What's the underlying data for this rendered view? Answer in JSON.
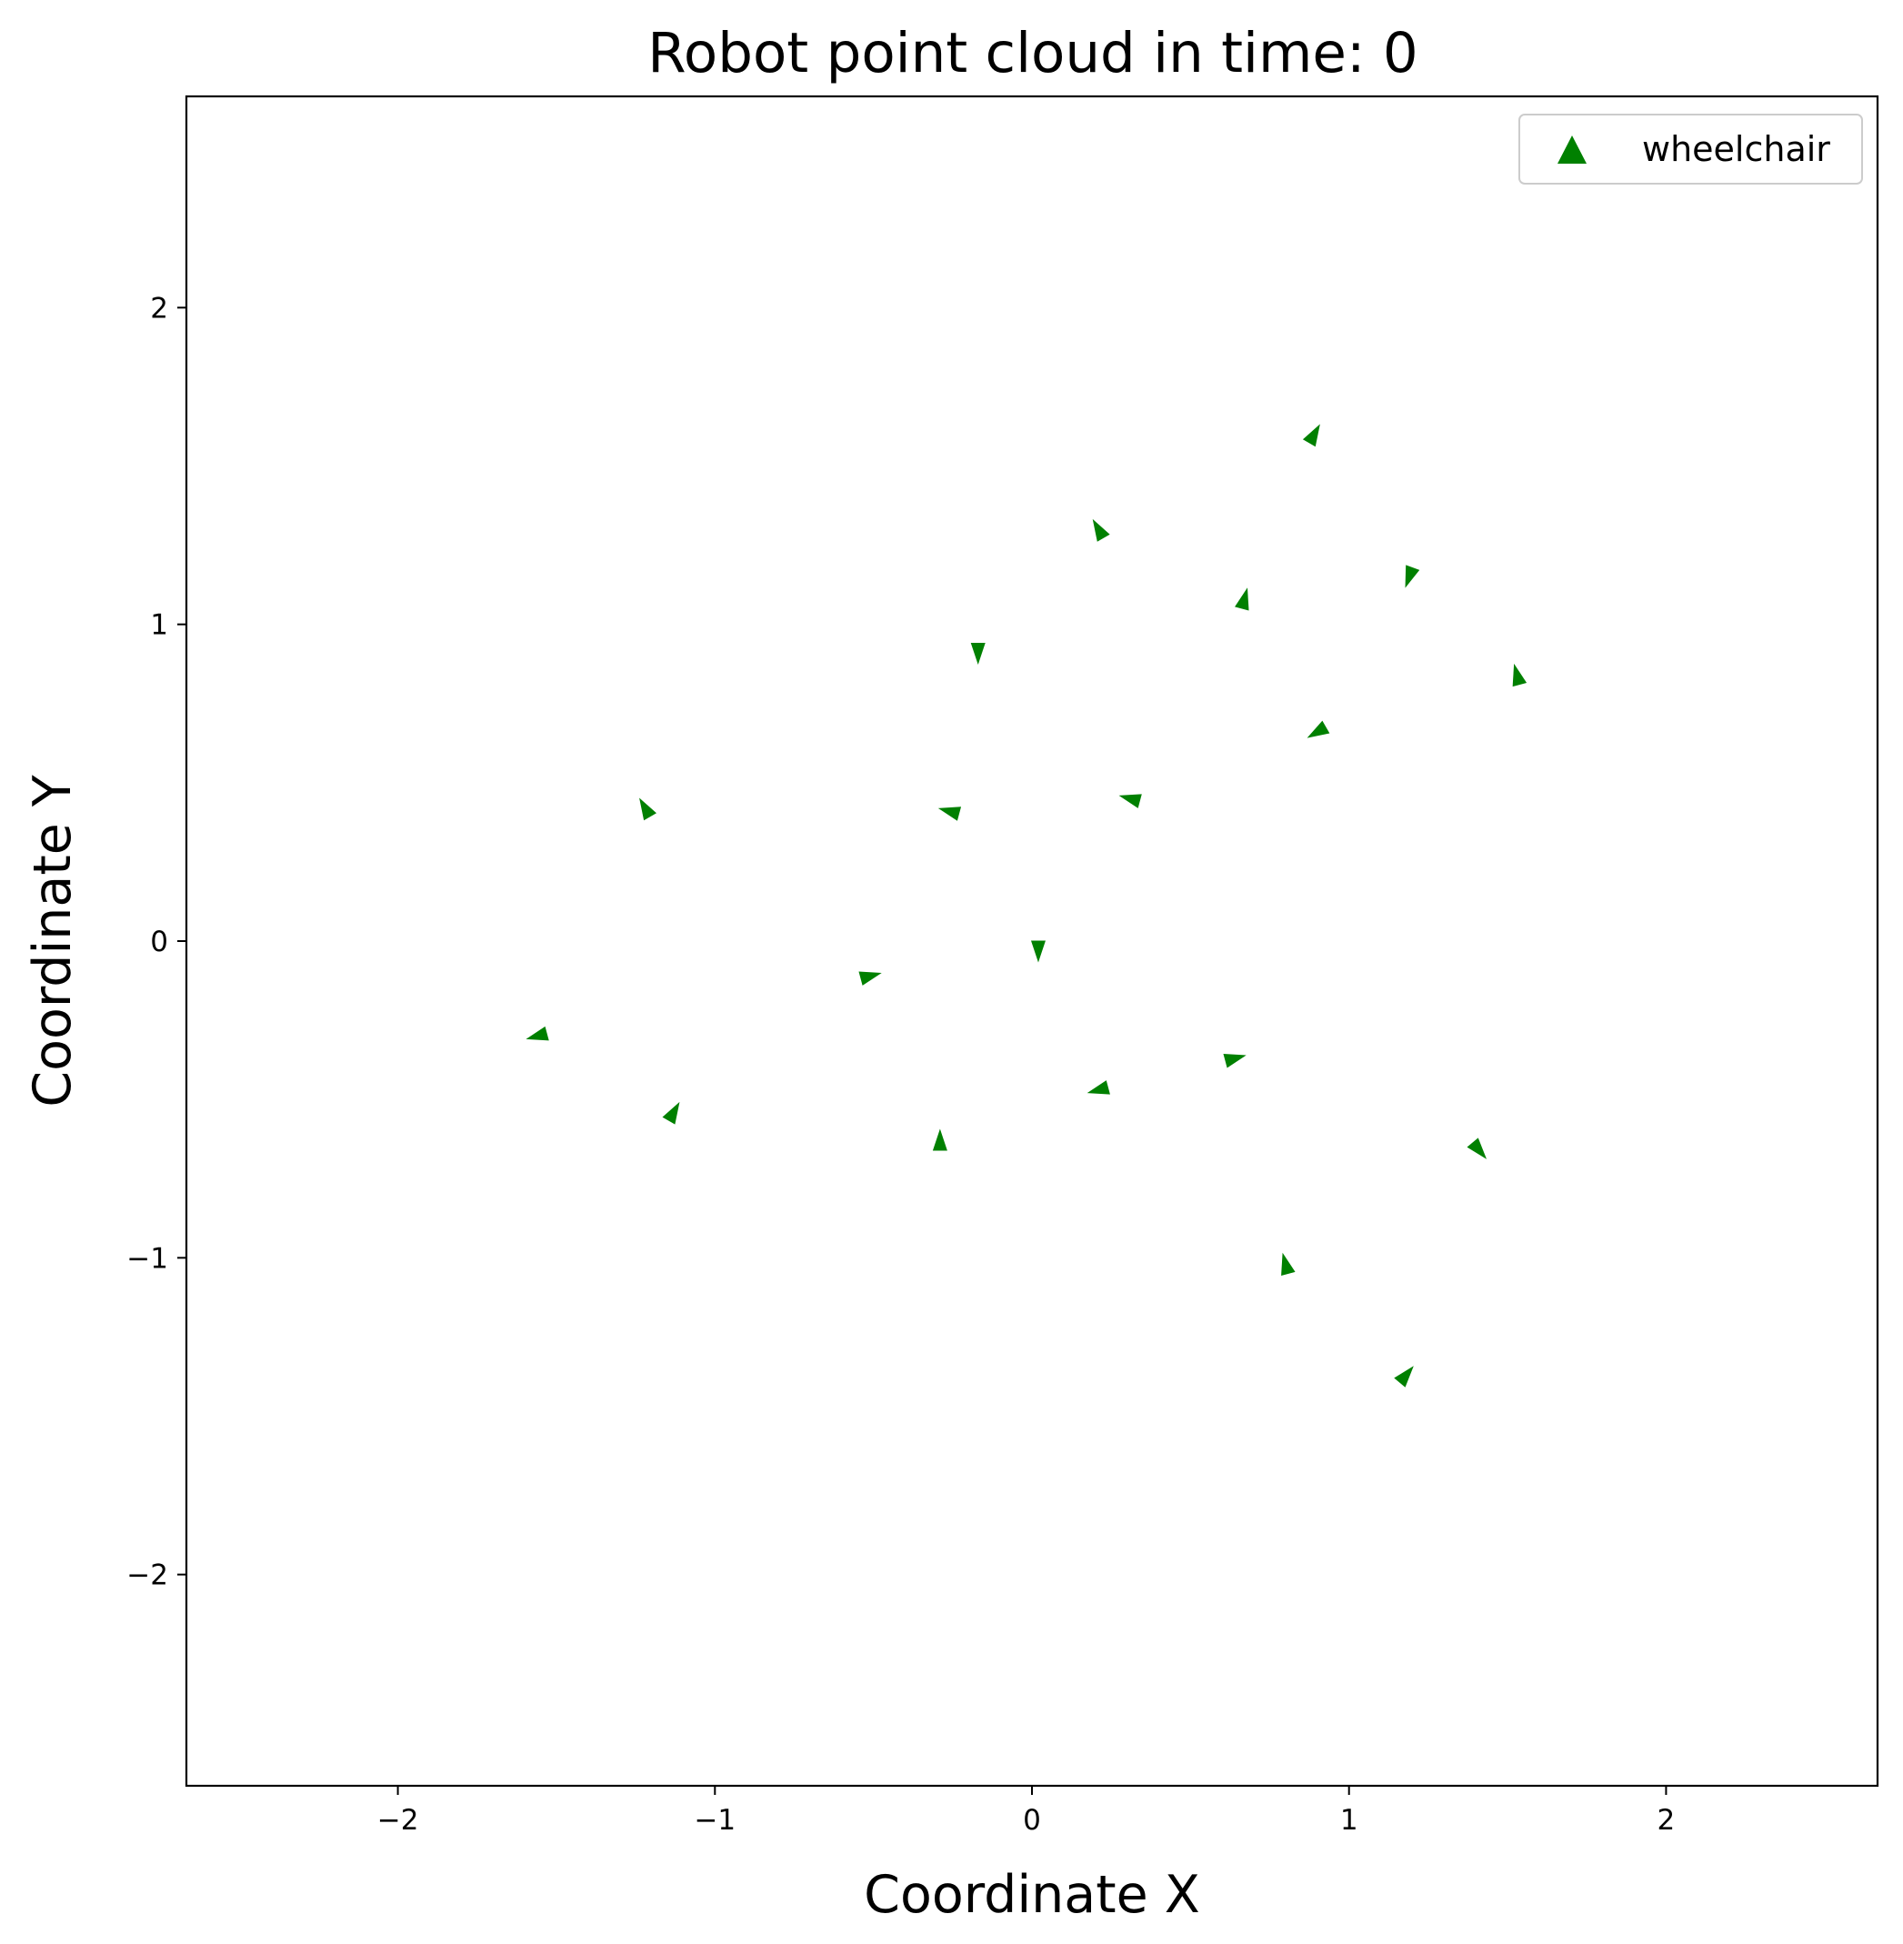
{
  "chart_data": {
    "type": "scatter",
    "title": "Robot point cloud in time: 0",
    "xlabel": "Coordinate X",
    "ylabel": "Coordinate Y",
    "xlim": [
      -2.667,
      2.667
    ],
    "ylim": [
      -2.667,
      2.667
    ],
    "xticks": [
      -2,
      -1,
      0,
      1,
      2
    ],
    "yticks": [
      -2,
      -1,
      0,
      1,
      2
    ],
    "xtick_labels": [
      "−2",
      "−1",
      "0",
      "1",
      "2"
    ],
    "ytick_labels": [
      "−2",
      "−1",
      "0",
      "1",
      "2"
    ],
    "grid": false,
    "legend_position": "top-right",
    "series": [
      {
        "name": "wheelchair",
        "color": "#008000",
        "marker": "triangle",
        "points": [
          {
            "x": 0.89,
            "y": 1.6,
            "heading": 30
          },
          {
            "x": 0.21,
            "y": 1.3,
            "heading": -30
          },
          {
            "x": 1.19,
            "y": 1.15,
            "heading": -160
          },
          {
            "x": 0.67,
            "y": 1.08,
            "heading": 15
          },
          {
            "x": -0.17,
            "y": 0.91,
            "heading": 180
          },
          {
            "x": 1.53,
            "y": 0.84,
            "heading": -15
          },
          {
            "x": 0.9,
            "y": 0.66,
            "heading": -120
          },
          {
            "x": -1.22,
            "y": 0.42,
            "heading": -30
          },
          {
            "x": -0.26,
            "y": 0.41,
            "heading": -75
          },
          {
            "x": 0.31,
            "y": 0.45,
            "heading": -75
          },
          {
            "x": 0.02,
            "y": -0.03,
            "heading": 180
          },
          {
            "x": -0.51,
            "y": -0.11,
            "heading": 75
          },
          {
            "x": -1.56,
            "y": -0.3,
            "heading": -105
          },
          {
            "x": 0.64,
            "y": -0.37,
            "heading": 75
          },
          {
            "x": 0.21,
            "y": -0.47,
            "heading": -105
          },
          {
            "x": -1.13,
            "y": -0.54,
            "heading": 30
          },
          {
            "x": -0.29,
            "y": -0.63,
            "heading": 0
          },
          {
            "x": 1.41,
            "y": -0.66,
            "heading": 140
          },
          {
            "x": 0.8,
            "y": -1.02,
            "heading": -15
          },
          {
            "x": 1.18,
            "y": -1.37,
            "heading": 40
          }
        ]
      }
    ]
  }
}
